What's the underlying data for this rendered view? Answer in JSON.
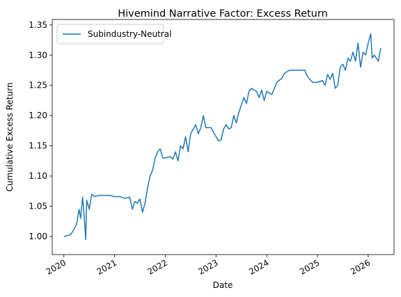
{
  "chart_data": {
    "type": "line",
    "title": "Hivemind Narrative Factor: Excess Return",
    "xlabel": "Date",
    "ylabel": "Cumulative Excess Return",
    "x": [
      2020.0,
      2020.1,
      2020.15,
      2020.2,
      2020.25,
      2020.3,
      2020.33,
      2020.37,
      2020.4,
      2020.43,
      2020.45,
      2020.5,
      2020.55,
      2020.6,
      2020.7,
      2020.9,
      2021.0,
      2021.1,
      2021.2,
      2021.3,
      2021.35,
      2021.4,
      2021.45,
      2021.5,
      2021.55,
      2021.6,
      2021.65,
      2021.7,
      2021.75,
      2021.8,
      2021.85,
      2021.9,
      2021.95,
      2022.0,
      2022.1,
      2022.15,
      2022.2,
      2022.25,
      2022.3,
      2022.35,
      2022.4,
      2022.45,
      2022.5,
      2022.6,
      2022.65,
      2022.7,
      2022.75,
      2022.8,
      2022.9,
      2023.0,
      2023.05,
      2023.1,
      2023.15,
      2023.2,
      2023.25,
      2023.3,
      2023.35,
      2023.4,
      2023.45,
      2023.55,
      2023.6,
      2023.65,
      2023.7,
      2023.8,
      2023.85,
      2023.9,
      2023.95,
      2024.0,
      2024.1,
      2024.2,
      2024.3,
      2024.35,
      2024.45,
      2024.6,
      2024.75,
      2024.8,
      2024.9,
      2025.0,
      2025.1,
      2025.15,
      2025.2,
      2025.25,
      2025.3,
      2025.35,
      2025.4,
      2025.45,
      2025.5,
      2025.55,
      2025.6,
      2025.65,
      2025.7,
      2025.75,
      2025.8,
      2025.85,
      2025.9,
      2025.95,
      2026.0,
      2026.05,
      2026.08,
      2026.12,
      2026.2,
      2026.25
    ],
    "series": [
      {
        "name": "Subindustry-Neutral",
        "color": "#1f77b4",
        "values": [
          1.0,
          1.002,
          1.005,
          1.012,
          1.02,
          1.045,
          1.03,
          1.065,
          1.035,
          0.995,
          1.06,
          1.045,
          1.07,
          1.066,
          1.068,
          1.068,
          1.066,
          1.066,
          1.063,
          1.065,
          1.045,
          1.058,
          1.055,
          1.062,
          1.04,
          1.055,
          1.08,
          1.1,
          1.11,
          1.13,
          1.14,
          1.145,
          1.13,
          1.13,
          1.132,
          1.128,
          1.14,
          1.125,
          1.15,
          1.145,
          1.165,
          1.14,
          1.17,
          1.185,
          1.17,
          1.18,
          1.2,
          1.18,
          1.18,
          1.165,
          1.158,
          1.16,
          1.178,
          1.185,
          1.178,
          1.18,
          1.2,
          1.188,
          1.205,
          1.23,
          1.22,
          1.24,
          1.245,
          1.24,
          1.23,
          1.242,
          1.225,
          1.24,
          1.235,
          1.255,
          1.262,
          1.27,
          1.275,
          1.275,
          1.275,
          1.265,
          1.255,
          1.255,
          1.258,
          1.25,
          1.268,
          1.26,
          1.27,
          1.245,
          1.25,
          1.28,
          1.285,
          1.275,
          1.295,
          1.29,
          1.305,
          1.29,
          1.32,
          1.28,
          1.305,
          1.3,
          1.32,
          1.335,
          1.295,
          1.3,
          1.29,
          1.312
        ]
      }
    ],
    "xlim": [
      2019.77,
      2026.51
    ],
    "xticks": [
      2020,
      2021,
      2022,
      2023,
      2024,
      2025,
      2026
    ],
    "ylim": [
      0.97,
      1.359
    ],
    "yticks": [
      {
        "value": 1.0,
        "label": "1.00"
      },
      1.05,
      {
        "value": 1.1,
        "label": "1.10"
      },
      1.15,
      {
        "value": 1.2,
        "label": "1.20"
      },
      1.25,
      {
        "value": 1.3,
        "label": "1.30"
      },
      1.35
    ],
    "legend": "upper left"
  }
}
